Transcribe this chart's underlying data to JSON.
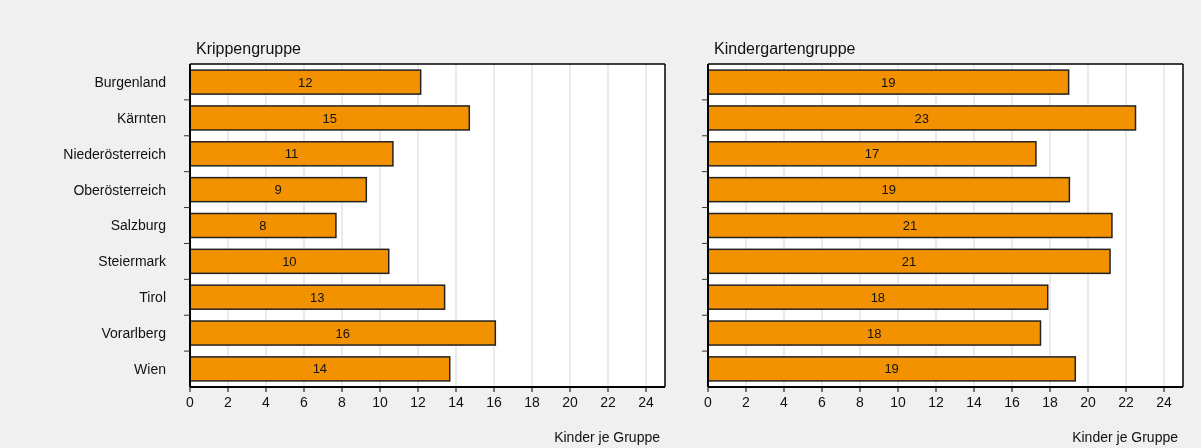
{
  "chart_data": [
    {
      "type": "bar",
      "orientation": "horizontal",
      "title": "Krippengruppe",
      "xlabel": "Kinder je Gruppe",
      "categories": [
        "Burgenland",
        "Kärnten",
        "Niederösterreich",
        "Oberösterreich",
        "Salzburg",
        "Steiermark",
        "Tirol",
        "Vorarlberg",
        "Wien"
      ],
      "values": [
        12.14,
        14.7,
        10.68,
        9.28,
        7.68,
        10.46,
        13.4,
        16.07,
        13.67
      ],
      "value_labels": [
        "12",
        "15",
        "11",
        "9",
        "8",
        "10",
        "13",
        "16",
        "14"
      ],
      "color": "#f39200",
      "xlim": [
        0,
        25
      ],
      "xticks": [
        0,
        2,
        4,
        6,
        8,
        10,
        12,
        14,
        16,
        18,
        20,
        22,
        24
      ],
      "grid": "x"
    },
    {
      "type": "bar",
      "orientation": "horizontal",
      "title": "Kindergartengruppe",
      "xlabel": "Kinder je Gruppe",
      "categories": [
        null,
        null,
        null,
        null,
        null,
        null,
        null,
        null,
        null
      ],
      "values": [
        18.98,
        22.5,
        17.26,
        19.02,
        21.26,
        21.16,
        17.88,
        17.5,
        19.33
      ],
      "value_labels": [
        "19",
        "23",
        "17",
        "19",
        "21",
        "21",
        "18",
        "18",
        "19"
      ],
      "color": "#f39200",
      "xlim": [
        0,
        25
      ],
      "xticks": [
        0,
        2,
        4,
        6,
        8,
        10,
        12,
        14,
        16,
        18,
        20,
        22,
        24
      ],
      "grid": "x"
    }
  ]
}
